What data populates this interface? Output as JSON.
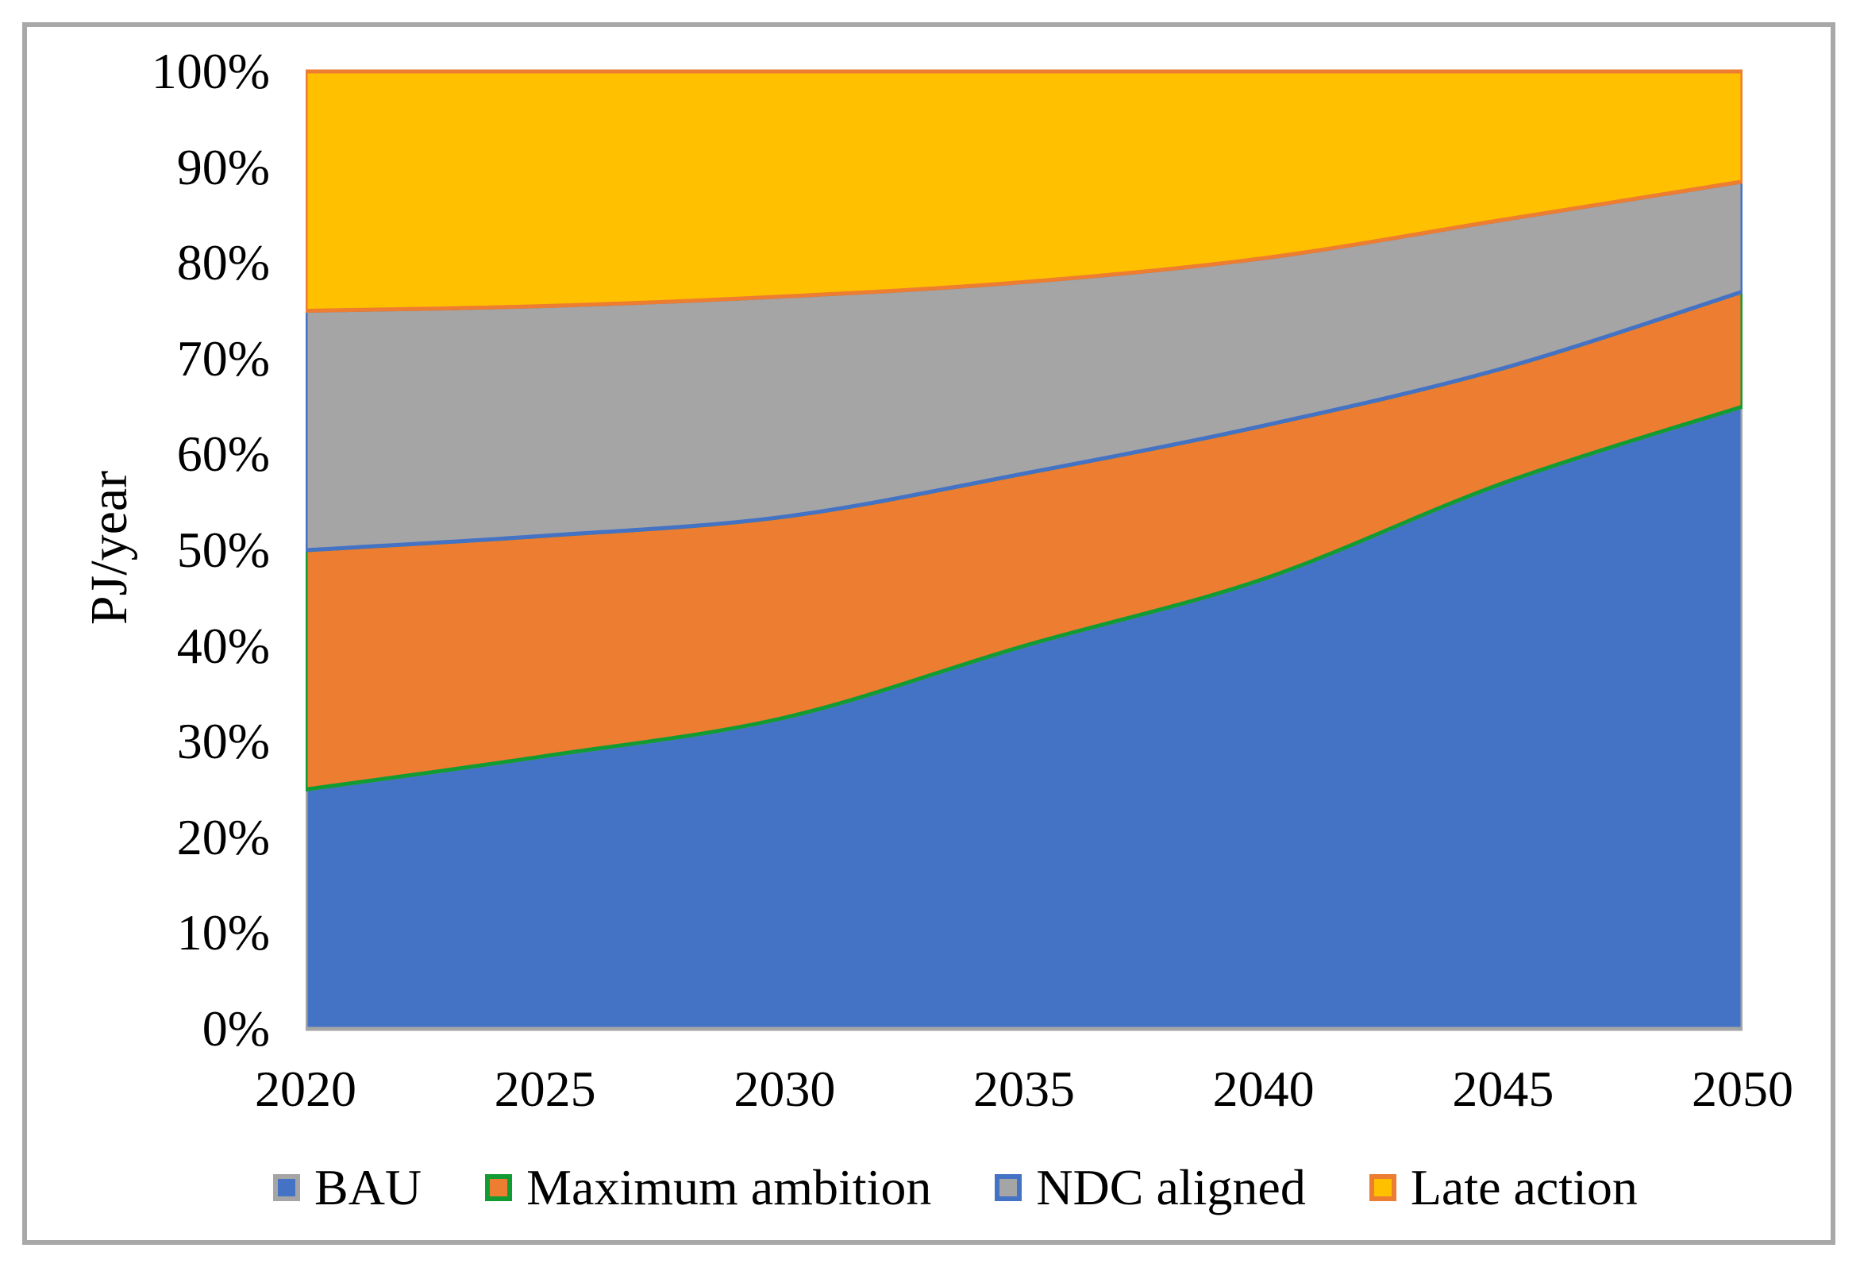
{
  "chart_data": {
    "type": "area",
    "stacked": true,
    "percent_stacked": true,
    "title": "",
    "xlabel": "",
    "ylabel": "PJ/year",
    "categories": [
      2020,
      2025,
      2030,
      2035,
      2040,
      2045,
      2050
    ],
    "x_tick_labels": [
      "2020",
      "2025",
      "2030",
      "2035",
      "2040",
      "2045",
      "2050"
    ],
    "y_tick_labels": [
      "0%",
      "10%",
      "20%",
      "30%",
      "40%",
      "50%",
      "60%",
      "70%",
      "80%",
      "90%",
      "100%"
    ],
    "ylim": [
      0,
      100
    ],
    "grid": false,
    "legend_position": "bottom",
    "series": [
      {
        "name": "BAU",
        "fill": "#4472C4",
        "border": "#A5A5A5",
        "values": [
          25,
          28.5,
          32.5,
          40,
          47,
          57,
          65
        ]
      },
      {
        "name": "Maximum ambition",
        "fill": "#ED7D31",
        "border": "#129B33",
        "values": [
          25,
          23,
          21,
          18,
          16,
          12,
          12
        ]
      },
      {
        "name": "NDC aligned",
        "fill": "#A5A5A5",
        "border": "#4472C4",
        "values": [
          25,
          24,
          23,
          20,
          17.5,
          15.5,
          11.5
        ]
      },
      {
        "name": "Late action",
        "fill": "#FFC000",
        "border": "#ED7D31",
        "values": [
          25,
          24.5,
          23.5,
          22,
          19.5,
          15.5,
          11.5
        ]
      }
    ],
    "cumulative_boundaries_percent": {
      "bau_top": [
        25,
        28.5,
        32.5,
        40,
        47,
        57,
        65
      ],
      "max_ambition_top": [
        50,
        51.5,
        53.5,
        58,
        63,
        69,
        77
      ],
      "ndc_aligned_top": [
        75,
        75.5,
        76.5,
        78,
        80.5,
        84.5,
        88.5
      ],
      "late_action_top": [
        100,
        100,
        100,
        100,
        100,
        100,
        100
      ]
    }
  },
  "frame": {
    "border_color": "#A8A8A8"
  }
}
